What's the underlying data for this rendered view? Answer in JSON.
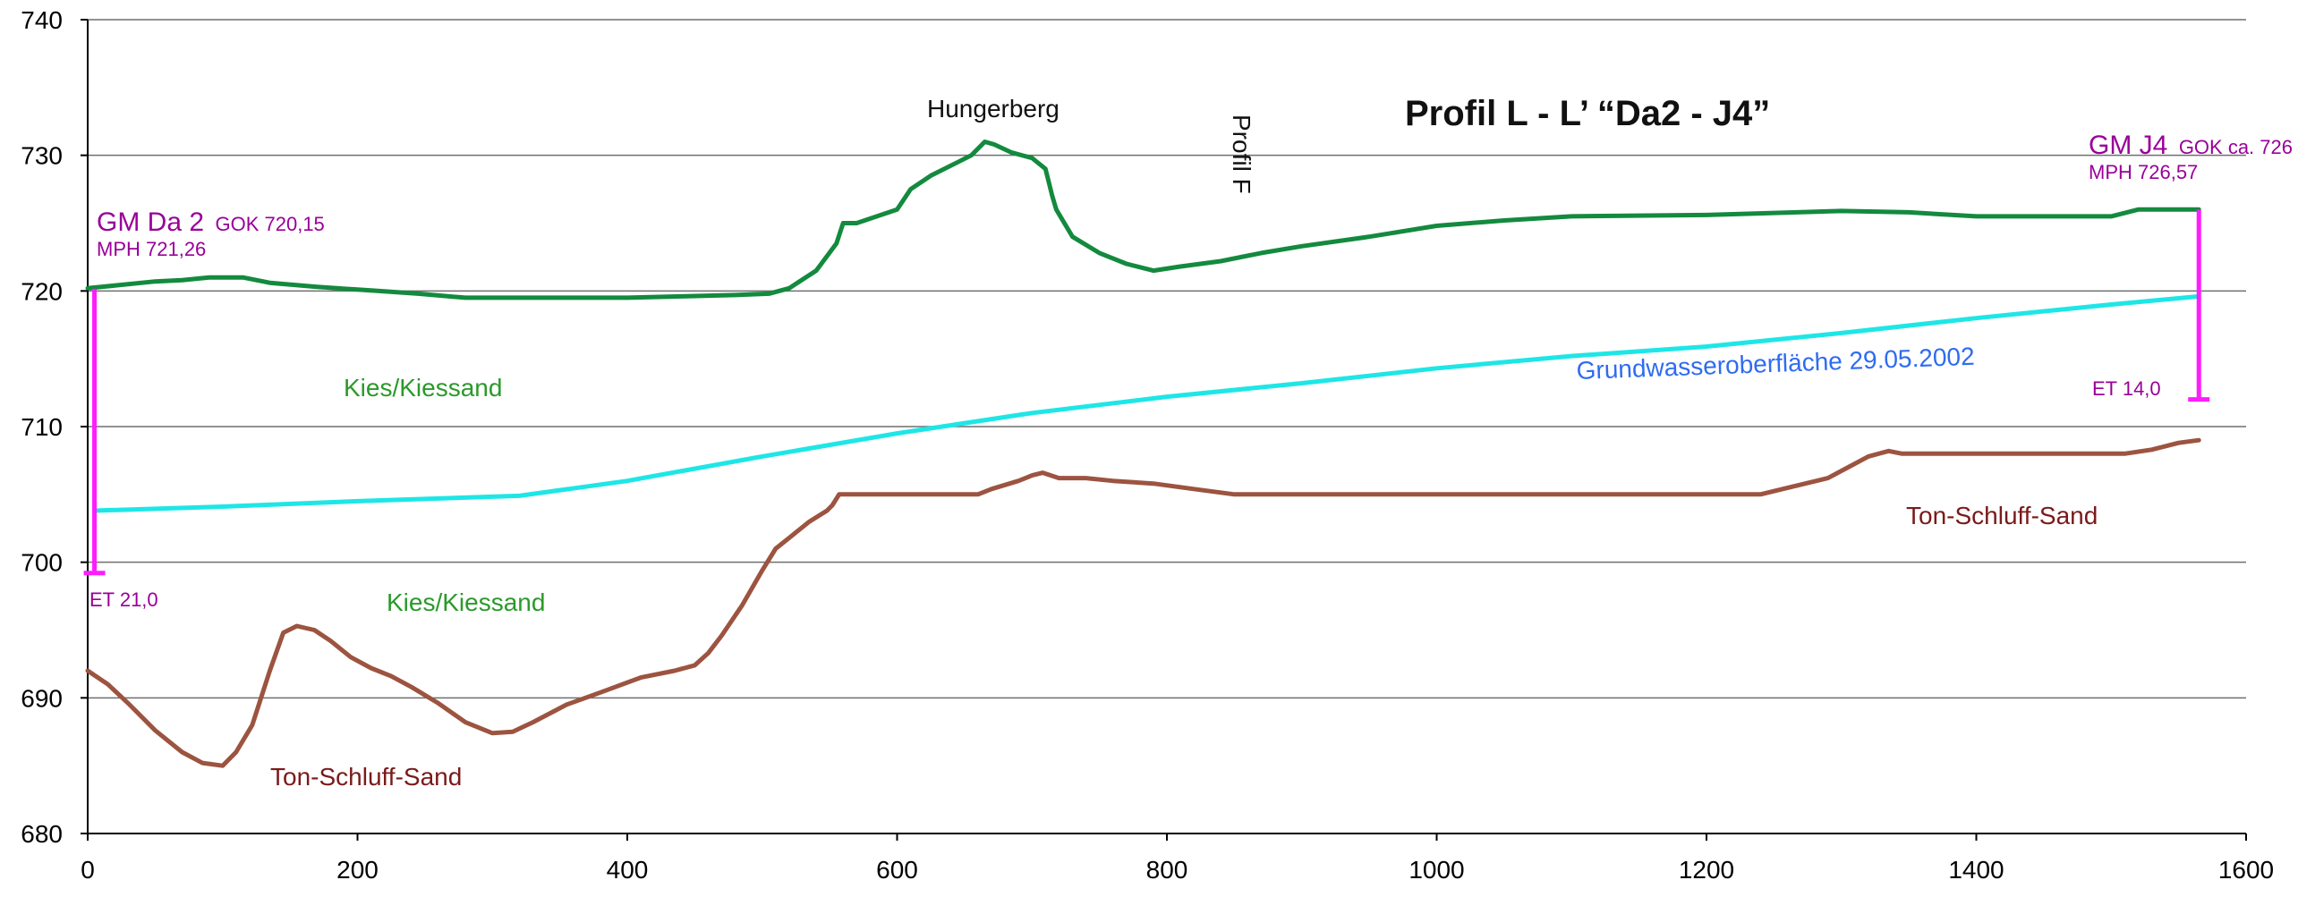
{
  "chart_data": {
    "type": "line",
    "title": "Profil L - L’   “Da2 - J4”",
    "xlabel": "",
    "ylabel": "",
    "xlim": [
      0,
      1600
    ],
    "ylim": [
      680,
      740
    ],
    "x_ticks": [
      0,
      200,
      400,
      600,
      800,
      1000,
      1200,
      1400,
      1600
    ],
    "y_ticks": [
      680,
      690,
      700,
      710,
      720,
      730,
      740
    ],
    "grid": "horizontal",
    "colors": {
      "terrain": "#138a3e",
      "groundwater": "#1fe6e6",
      "clay": "#9c5440",
      "well": "#ff1cff",
      "well_text": "#990099",
      "gravel_text": "#2a9a2a",
      "clay_text": "#7a1a1a",
      "gw_text": "#2e6cf0",
      "grid": "#6f6f6f"
    },
    "series": [
      {
        "key": "terrain",
        "points": [
          [
            0,
            720.2
          ],
          [
            20,
            720.4
          ],
          [
            50,
            720.7
          ],
          [
            70,
            720.8
          ],
          [
            90,
            721.0
          ],
          [
            115,
            721.0
          ],
          [
            135,
            720.6
          ],
          [
            170,
            720.3
          ],
          [
            200,
            720.1
          ],
          [
            215,
            720.0
          ],
          [
            245,
            719.8
          ],
          [
            280,
            719.5
          ],
          [
            320,
            719.5
          ],
          [
            360,
            719.5
          ],
          [
            400,
            719.5
          ],
          [
            440,
            719.6
          ],
          [
            480,
            719.7
          ],
          [
            505,
            719.8
          ],
          [
            520,
            720.2
          ],
          [
            540,
            721.5
          ],
          [
            555,
            723.5
          ],
          [
            560,
            725.0
          ],
          [
            570,
            725.0
          ],
          [
            585,
            725.5
          ],
          [
            600,
            726.0
          ],
          [
            610,
            727.5
          ],
          [
            625,
            728.5
          ],
          [
            645,
            729.5
          ],
          [
            655,
            730.0
          ],
          [
            665,
            731.0
          ],
          [
            672,
            730.8
          ],
          [
            685,
            730.2
          ],
          [
            700,
            729.8
          ],
          [
            710,
            729.0
          ],
          [
            715,
            727.0
          ],
          [
            718,
            726.0
          ],
          [
            730,
            724.0
          ],
          [
            750,
            722.8
          ],
          [
            770,
            722.0
          ],
          [
            790,
            721.5
          ],
          [
            810,
            721.8
          ],
          [
            840,
            722.2
          ],
          [
            870,
            722.8
          ],
          [
            900,
            723.3
          ],
          [
            950,
            724.0
          ],
          [
            1000,
            724.8
          ],
          [
            1050,
            725.2
          ],
          [
            1100,
            725.5
          ],
          [
            1200,
            725.6
          ],
          [
            1300,
            725.9
          ],
          [
            1350,
            725.8
          ],
          [
            1400,
            725.5
          ],
          [
            1500,
            725.5
          ],
          [
            1520,
            726.0
          ],
          [
            1565,
            726.0
          ]
        ]
      },
      {
        "key": "groundwater",
        "points": [
          [
            5,
            703.8
          ],
          [
            100,
            704.1
          ],
          [
            200,
            704.5
          ],
          [
            320,
            704.9
          ],
          [
            400,
            706.0
          ],
          [
            500,
            707.8
          ],
          [
            600,
            709.5
          ],
          [
            700,
            711.0
          ],
          [
            800,
            712.2
          ],
          [
            900,
            713.2
          ],
          [
            1000,
            714.3
          ],
          [
            1100,
            715.2
          ],
          [
            1200,
            715.9
          ],
          [
            1300,
            716.9
          ],
          [
            1400,
            718.0
          ],
          [
            1500,
            719.0
          ],
          [
            1565,
            719.6
          ]
        ]
      },
      {
        "key": "clay",
        "points": [
          [
            0,
            692.0
          ],
          [
            15,
            691.0
          ],
          [
            30,
            689.6
          ],
          [
            50,
            687.6
          ],
          [
            70,
            686.0
          ],
          [
            85,
            685.2
          ],
          [
            100,
            685.0
          ],
          [
            110,
            686.0
          ],
          [
            122,
            688.0
          ],
          [
            135,
            692.0
          ],
          [
            145,
            694.8
          ],
          [
            155,
            695.3
          ],
          [
            168,
            695.0
          ],
          [
            180,
            694.2
          ],
          [
            195,
            693.0
          ],
          [
            210,
            692.2
          ],
          [
            225,
            691.6
          ],
          [
            240,
            690.8
          ],
          [
            260,
            689.6
          ],
          [
            280,
            688.2
          ],
          [
            300,
            687.4
          ],
          [
            315,
            687.5
          ],
          [
            330,
            688.2
          ],
          [
            355,
            689.5
          ],
          [
            380,
            690.4
          ],
          [
            410,
            691.5
          ],
          [
            435,
            692.0
          ],
          [
            450,
            692.4
          ],
          [
            460,
            693.3
          ],
          [
            470,
            694.6
          ],
          [
            485,
            696.8
          ],
          [
            500,
            699.4
          ],
          [
            510,
            701.0
          ],
          [
            520,
            701.8
          ],
          [
            535,
            703.0
          ],
          [
            548,
            703.8
          ],
          [
            552,
            704.2
          ],
          [
            557,
            705.0
          ],
          [
            570,
            705.0
          ],
          [
            600,
            705.0
          ],
          [
            640,
            705.0
          ],
          [
            660,
            705.0
          ],
          [
            670,
            705.4
          ],
          [
            690,
            706.0
          ],
          [
            700,
            706.4
          ],
          [
            708,
            706.6
          ],
          [
            720,
            706.2
          ],
          [
            740,
            706.2
          ],
          [
            760,
            706.0
          ],
          [
            790,
            705.8
          ],
          [
            820,
            705.4
          ],
          [
            850,
            705.0
          ],
          [
            1000,
            705.0
          ],
          [
            1100,
            705.0
          ],
          [
            1240,
            705.0
          ],
          [
            1265,
            705.6
          ],
          [
            1290,
            706.2
          ],
          [
            1305,
            707.0
          ],
          [
            1320,
            707.8
          ],
          [
            1335,
            708.2
          ],
          [
            1345,
            708.0
          ],
          [
            1400,
            708.0
          ],
          [
            1460,
            708.0
          ],
          [
            1510,
            708.0
          ],
          [
            1530,
            708.3
          ],
          [
            1550,
            708.8
          ],
          [
            1565,
            709.0
          ]
        ]
      }
    ],
    "wells": [
      {
        "name": "GM Da 2",
        "gok": "GOK 720,15",
        "mph": "MPH 721,26",
        "et": "ET 21,0",
        "x": 5,
        "top": 720.15,
        "bottom": 699.2
      },
      {
        "name": "GM J4",
        "gok": "GOK ca. 726",
        "mph": "MPH 726,57",
        "et": "ET 14,0",
        "x": 1565,
        "top": 726.0,
        "bottom": 712.0
      }
    ],
    "annotations": {
      "hungerberg": "Hungerberg",
      "profil_f": "Profil F",
      "kies_upper": "Kies/Kiessand",
      "kies_lower": "Kies/Kiessand",
      "ton_left": "Ton-Schluff-Sand",
      "ton_right": "Ton-Schluff-Sand",
      "groundwater_label": "Grundwasseroberfläche 29.05.2002"
    }
  }
}
